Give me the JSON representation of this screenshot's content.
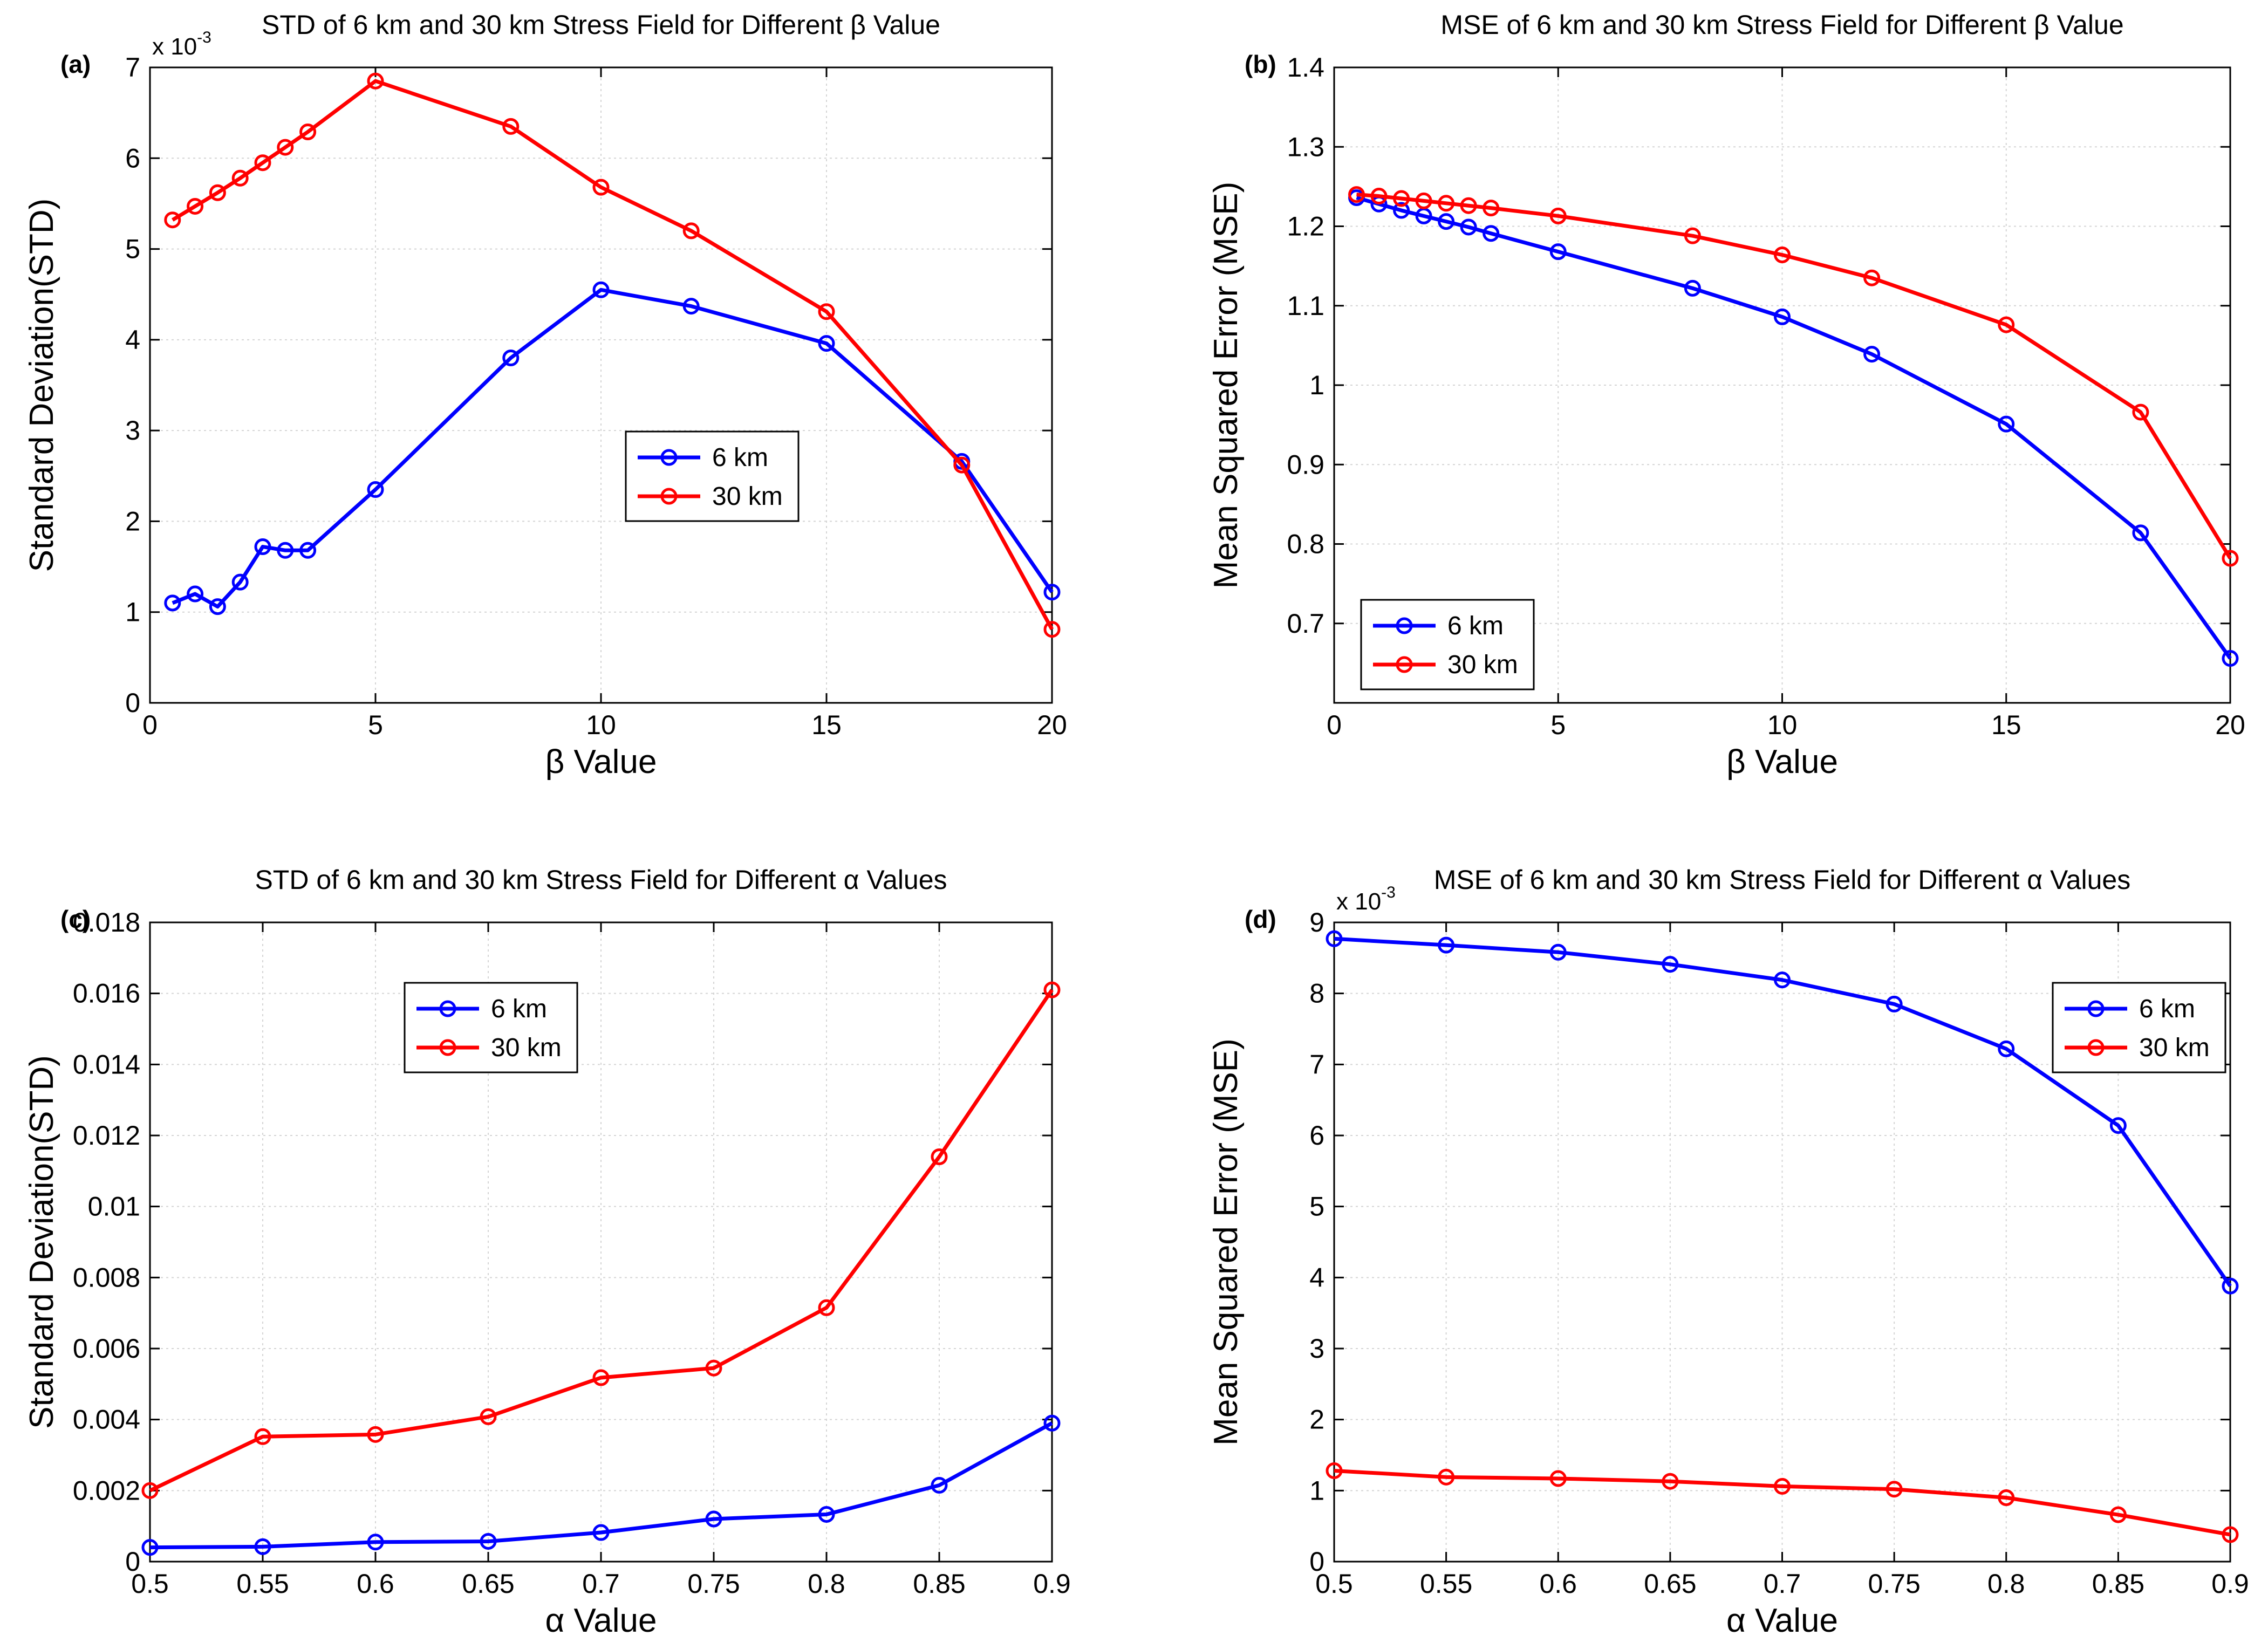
{
  "chart_data": [
    {
      "panel_label": "(a)",
      "type": "line",
      "title": "STD of 6 km and 30 km Stress Field for Different β Value",
      "xlabel": "β Value",
      "ylabel": "Standard Deviation(STD)",
      "exponent_label": "x 10",
      "exponent_power": "-3",
      "xlim": [
        0,
        20
      ],
      "ylim": [
        0,
        7
      ],
      "xticks": [
        0,
        5,
        10,
        15,
        20
      ],
      "xtick_labels": [
        "0",
        "5",
        "10",
        "15",
        "20"
      ],
      "yticks": [
        0,
        1,
        2,
        3,
        4,
        5,
        6,
        7
      ],
      "ytick_labels": [
        "0",
        "1",
        "2",
        "3",
        "4",
        "5",
        "6",
        "7"
      ],
      "grid": true,
      "legend_position": "center",
      "series": [
        {
          "name": "6 km",
          "color": "#0000ff",
          "x": [
            0.5,
            1,
            1.5,
            2,
            2.5,
            3,
            3.5,
            5,
            8,
            10,
            12,
            15,
            18,
            20
          ],
          "y": [
            1.1,
            1.2,
            1.06,
            1.33,
            1.72,
            1.68,
            1.68,
            2.35,
            3.8,
            4.55,
            4.37,
            3.96,
            2.66,
            1.22
          ]
        },
        {
          "name": "30 km",
          "color": "#ff0000",
          "x": [
            0.5,
            1,
            1.5,
            2,
            2.5,
            3,
            3.5,
            5,
            8,
            10,
            12,
            15,
            18,
            20
          ],
          "y": [
            5.32,
            5.47,
            5.62,
            5.78,
            5.95,
            6.12,
            6.29,
            6.85,
            6.35,
            5.68,
            5.2,
            4.31,
            2.62,
            0.81
          ]
        }
      ]
    },
    {
      "panel_label": "(b)",
      "type": "line",
      "title": "MSE of 6 km and 30 km Stress Field for Different β Value",
      "xlabel": "β Value",
      "ylabel": "Mean Squared Error (MSE)",
      "exponent_label": "",
      "exponent_power": "",
      "xlim": [
        0,
        20
      ],
      "ylim": [
        0.6,
        1.4
      ],
      "xticks": [
        0,
        5,
        10,
        15,
        20
      ],
      "xtick_labels": [
        "0",
        "5",
        "10",
        "15",
        "20"
      ],
      "yticks": [
        0.7,
        0.8,
        0.9,
        1.0,
        1.1,
        1.2,
        1.3,
        1.4
      ],
      "ytick_labels": [
        "0.7",
        "0.8",
        "0.9",
        "1",
        "1.1",
        "1.2",
        "1.3",
        "1.4"
      ],
      "grid": true,
      "legend_position": "bottom-left",
      "series": [
        {
          "name": "6 km",
          "color": "#0000ff",
          "x": [
            0.5,
            1,
            1.5,
            2,
            2.5,
            3,
            3.5,
            5,
            8,
            10,
            12,
            15,
            18,
            20
          ],
          "y": [
            1.236,
            1.228,
            1.22,
            1.213,
            1.206,
            1.199,
            1.191,
            1.168,
            1.122,
            1.086,
            1.039,
            0.951,
            0.814,
            0.656
          ]
        },
        {
          "name": "30 km",
          "color": "#ff0000",
          "x": [
            0.5,
            1,
            1.5,
            2,
            2.5,
            3,
            3.5,
            5,
            8,
            10,
            12,
            15,
            18,
            20
          ],
          "y": [
            1.24,
            1.238,
            1.235,
            1.232,
            1.229,
            1.226,
            1.223,
            1.213,
            1.188,
            1.164,
            1.135,
            1.076,
            0.966,
            0.782
          ]
        }
      ]
    },
    {
      "panel_label": "(c)",
      "type": "line",
      "title": "STD of 6 km and 30 km Stress Field for Different α Values",
      "xlabel": "α Value",
      "ylabel": "Standard Deviation(STD)",
      "exponent_label": "",
      "exponent_power": "",
      "xlim": [
        0.5,
        0.9
      ],
      "ylim": [
        0,
        0.018
      ],
      "xticks": [
        0.5,
        0.55,
        0.6,
        0.65,
        0.7,
        0.75,
        0.8,
        0.85,
        0.9
      ],
      "xtick_labels": [
        "0.5",
        "0.55",
        "0.6",
        "0.65",
        "0.7",
        "0.75",
        "0.8",
        "0.85",
        "0.9"
      ],
      "yticks": [
        0,
        0.002,
        0.004,
        0.006,
        0.008,
        0.01,
        0.012,
        0.014,
        0.016,
        0.018
      ],
      "ytick_labels": [
        "0",
        "0.002",
        "0.004",
        "0.006",
        "0.008",
        "0.01",
        "0.012",
        "0.014",
        "0.016",
        "0.018"
      ],
      "grid": true,
      "legend_position": "top-left",
      "series": [
        {
          "name": "6 km",
          "color": "#0000ff",
          "x": [
            0.5,
            0.55,
            0.6,
            0.65,
            0.7,
            0.75,
            0.8,
            0.85,
            0.9
          ],
          "y": [
            0.0004,
            0.00042,
            0.00055,
            0.00057,
            0.00082,
            0.0012,
            0.00133,
            0.00215,
            0.0039
          ]
        },
        {
          "name": "30 km",
          "color": "#ff0000",
          "x": [
            0.5,
            0.55,
            0.6,
            0.65,
            0.7,
            0.75,
            0.8,
            0.85,
            0.9
          ],
          "y": [
            0.002,
            0.00352,
            0.00358,
            0.00408,
            0.00518,
            0.00545,
            0.00715,
            0.0114,
            0.0161
          ]
        }
      ]
    },
    {
      "panel_label": "(d)",
      "type": "line",
      "title": "MSE of 6 km and 30 km Stress Field for Different α Values",
      "xlabel": "α Value",
      "ylabel": "Mean Squared Error (MSE)",
      "exponent_label": "x 10",
      "exponent_power": "-3",
      "xlim": [
        0.5,
        0.9
      ],
      "ylim": [
        0,
        9
      ],
      "xticks": [
        0.5,
        0.55,
        0.6,
        0.65,
        0.7,
        0.75,
        0.8,
        0.85,
        0.9
      ],
      "xtick_labels": [
        "0.5",
        "0.55",
        "0.6",
        "0.65",
        "0.7",
        "0.75",
        "0.8",
        "0.85",
        "0.9"
      ],
      "yticks": [
        0,
        1,
        2,
        3,
        4,
        5,
        6,
        7,
        8,
        9
      ],
      "ytick_labels": [
        "0",
        "1",
        "2",
        "3",
        "4",
        "5",
        "6",
        "7",
        "8",
        "9"
      ],
      "grid": true,
      "legend_position": "top-right",
      "series": [
        {
          "name": "6 km",
          "color": "#0000ff",
          "x": [
            0.5,
            0.55,
            0.6,
            0.65,
            0.7,
            0.75,
            0.8,
            0.85,
            0.9
          ],
          "y": [
            8.77,
            8.68,
            8.58,
            8.41,
            8.19,
            7.85,
            7.22,
            6.14,
            3.88
          ]
        },
        {
          "name": "30 km",
          "color": "#ff0000",
          "x": [
            0.5,
            0.55,
            0.6,
            0.65,
            0.7,
            0.75,
            0.8,
            0.85,
            0.9
          ],
          "y": [
            1.28,
            1.19,
            1.17,
            1.13,
            1.06,
            1.02,
            0.9,
            0.66,
            0.38
          ]
        }
      ]
    }
  ]
}
